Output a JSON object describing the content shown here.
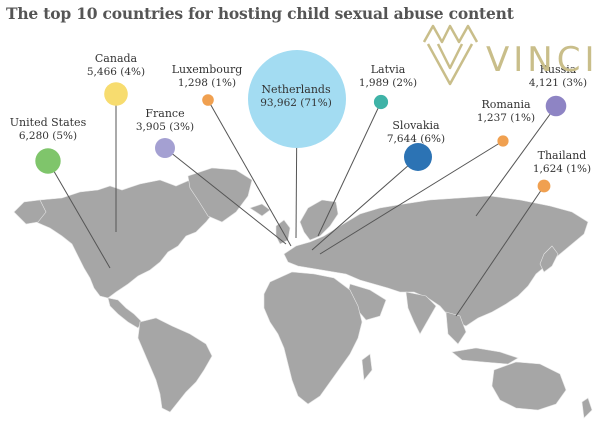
{
  "title": "The top 10 countries for hosting child sexual abuse content",
  "watermark": {
    "text": "VINCI",
    "color": "#c9be8a"
  },
  "map": {
    "land_color": "#a6a6a6",
    "border_color": "#e6e6e6"
  },
  "countries": [
    {
      "name": "United States",
      "count": "6,280",
      "share": "(5%)",
      "color": "#7fc56b",
      "value": 6280
    },
    {
      "name": "Canada",
      "count": "5,466",
      "share": "(4%)",
      "color": "#f7dc6f",
      "value": 5466
    },
    {
      "name": "France",
      "count": "3,905",
      "share": "(3%)",
      "color": "#a4a0d2",
      "value": 3905
    },
    {
      "name": "Luxembourg",
      "count": "1,298",
      "share": "(1%)",
      "color": "#f0a050",
      "value": 1298
    },
    {
      "name": "Netherlands",
      "count": "93,962",
      "share": "(71%)",
      "color": "#a3dcf2",
      "value": 93962
    },
    {
      "name": "Latvia",
      "count": "1,989",
      "share": "(2%)",
      "color": "#3fb3a7",
      "value": 1989
    },
    {
      "name": "Slovakia",
      "count": "7,644",
      "share": "(6%)",
      "color": "#2c73b4",
      "value": 7644
    },
    {
      "name": "Romania",
      "count": "1,237",
      "share": "(1%)",
      "color": "#f0a050",
      "value": 1237
    },
    {
      "name": "Russia",
      "count": "4,121",
      "share": "(3%)",
      "color": "#8e84c4",
      "value": 4121
    },
    {
      "name": "Thailand",
      "count": "1,624",
      "share": "(1%)",
      "color": "#f0a050",
      "value": 1624
    }
  ]
}
